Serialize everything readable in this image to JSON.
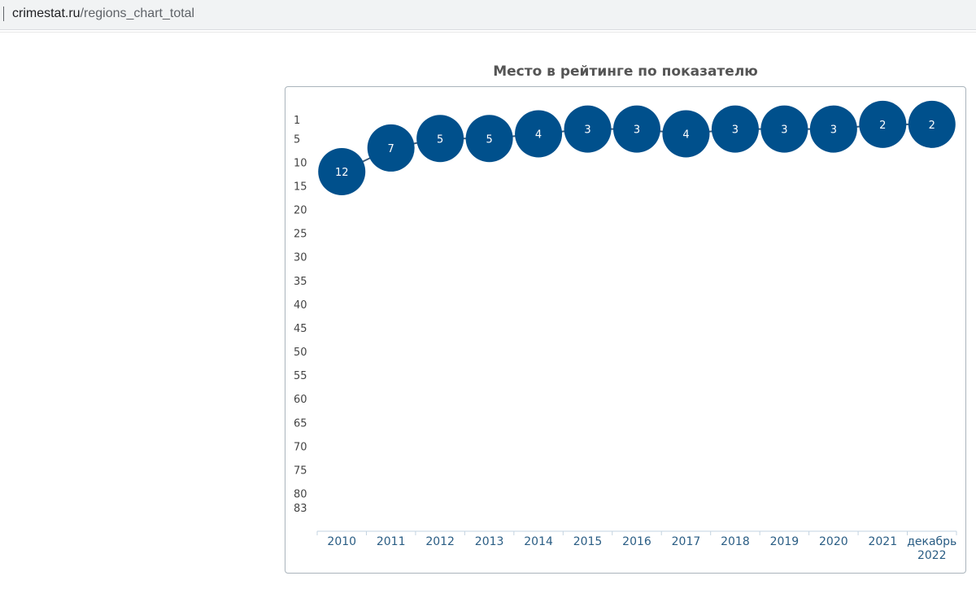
{
  "browser": {
    "url_host": "crimestat.ru",
    "url_path": "/regions_chart_total"
  },
  "colors": {
    "bubble": "#00508c",
    "axis": "#c3d3e0",
    "xtick": "#2a5d84"
  },
  "chart_data": {
    "type": "scatter",
    "title": "Место в рейтинге по показателю",
    "xlabel": "",
    "ylabel": "",
    "ylim": [
      1,
      83
    ],
    "y_reversed": true,
    "yticks": [
      1,
      5,
      10,
      15,
      20,
      25,
      30,
      35,
      40,
      45,
      50,
      55,
      60,
      65,
      70,
      75,
      80,
      83
    ],
    "categories": [
      "2010",
      "2011",
      "2012",
      "2013",
      "2014",
      "2015",
      "2016",
      "2017",
      "2018",
      "2019",
      "2020",
      "2021",
      "декабрь 2022"
    ],
    "series": [
      {
        "name": "Место в рейтинге",
        "values": [
          12,
          7,
          5,
          5,
          4,
          3,
          3,
          4,
          3,
          3,
          3,
          2,
          2
        ]
      }
    ]
  }
}
